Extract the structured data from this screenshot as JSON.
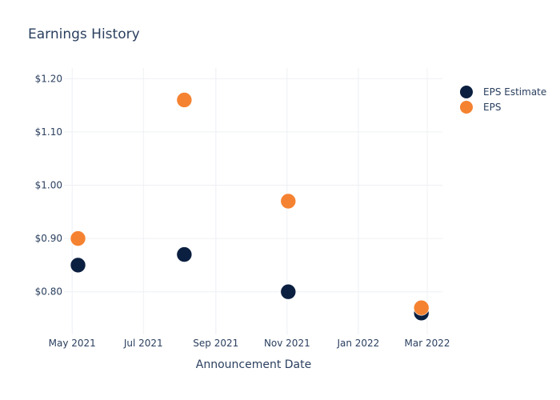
{
  "chart_data": {
    "type": "scatter",
    "title": "Earnings History",
    "xlabel": "Announcement Date",
    "ylabel": "",
    "x_ticks": [
      {
        "date": "2021-05-01",
        "label": "May 2021"
      },
      {
        "date": "2021-07-01",
        "label": "Jul 2021"
      },
      {
        "date": "2021-09-01",
        "label": "Sep 2021"
      },
      {
        "date": "2021-11-01",
        "label": "Nov 2021"
      },
      {
        "date": "2022-01-01",
        "label": "Jan 2022"
      },
      {
        "date": "2022-03-01",
        "label": "Mar 2022"
      }
    ],
    "y_ticks": [
      {
        "value": 0.8,
        "label": "$0.80"
      },
      {
        "value": 0.9,
        "label": "$0.90"
      },
      {
        "value": 1.0,
        "label": "$1.00"
      },
      {
        "value": 1.1,
        "label": "$1.10"
      },
      {
        "value": 1.2,
        "label": "$1.20"
      }
    ],
    "xlim": [
      "2021-04-24",
      "2022-03-14"
    ],
    "ylim": [
      0.72,
      1.22
    ],
    "grid": true,
    "legend_position": "top-right",
    "series": [
      {
        "name": "EPS Estimate",
        "color": "#0b1f40",
        "points": [
          {
            "x": "2021-05-06",
            "y": 0.85
          },
          {
            "x": "2021-08-05",
            "y": 0.87
          },
          {
            "x": "2021-11-02",
            "y": 0.8
          },
          {
            "x": "2022-02-24",
            "y": 0.76
          }
        ]
      },
      {
        "name": "EPS",
        "color": "#f58231",
        "points": [
          {
            "x": "2021-05-06",
            "y": 0.9
          },
          {
            "x": "2021-08-05",
            "y": 1.16
          },
          {
            "x": "2021-11-02",
            "y": 0.97
          },
          {
            "x": "2022-02-24",
            "y": 0.77
          }
        ]
      }
    ]
  }
}
